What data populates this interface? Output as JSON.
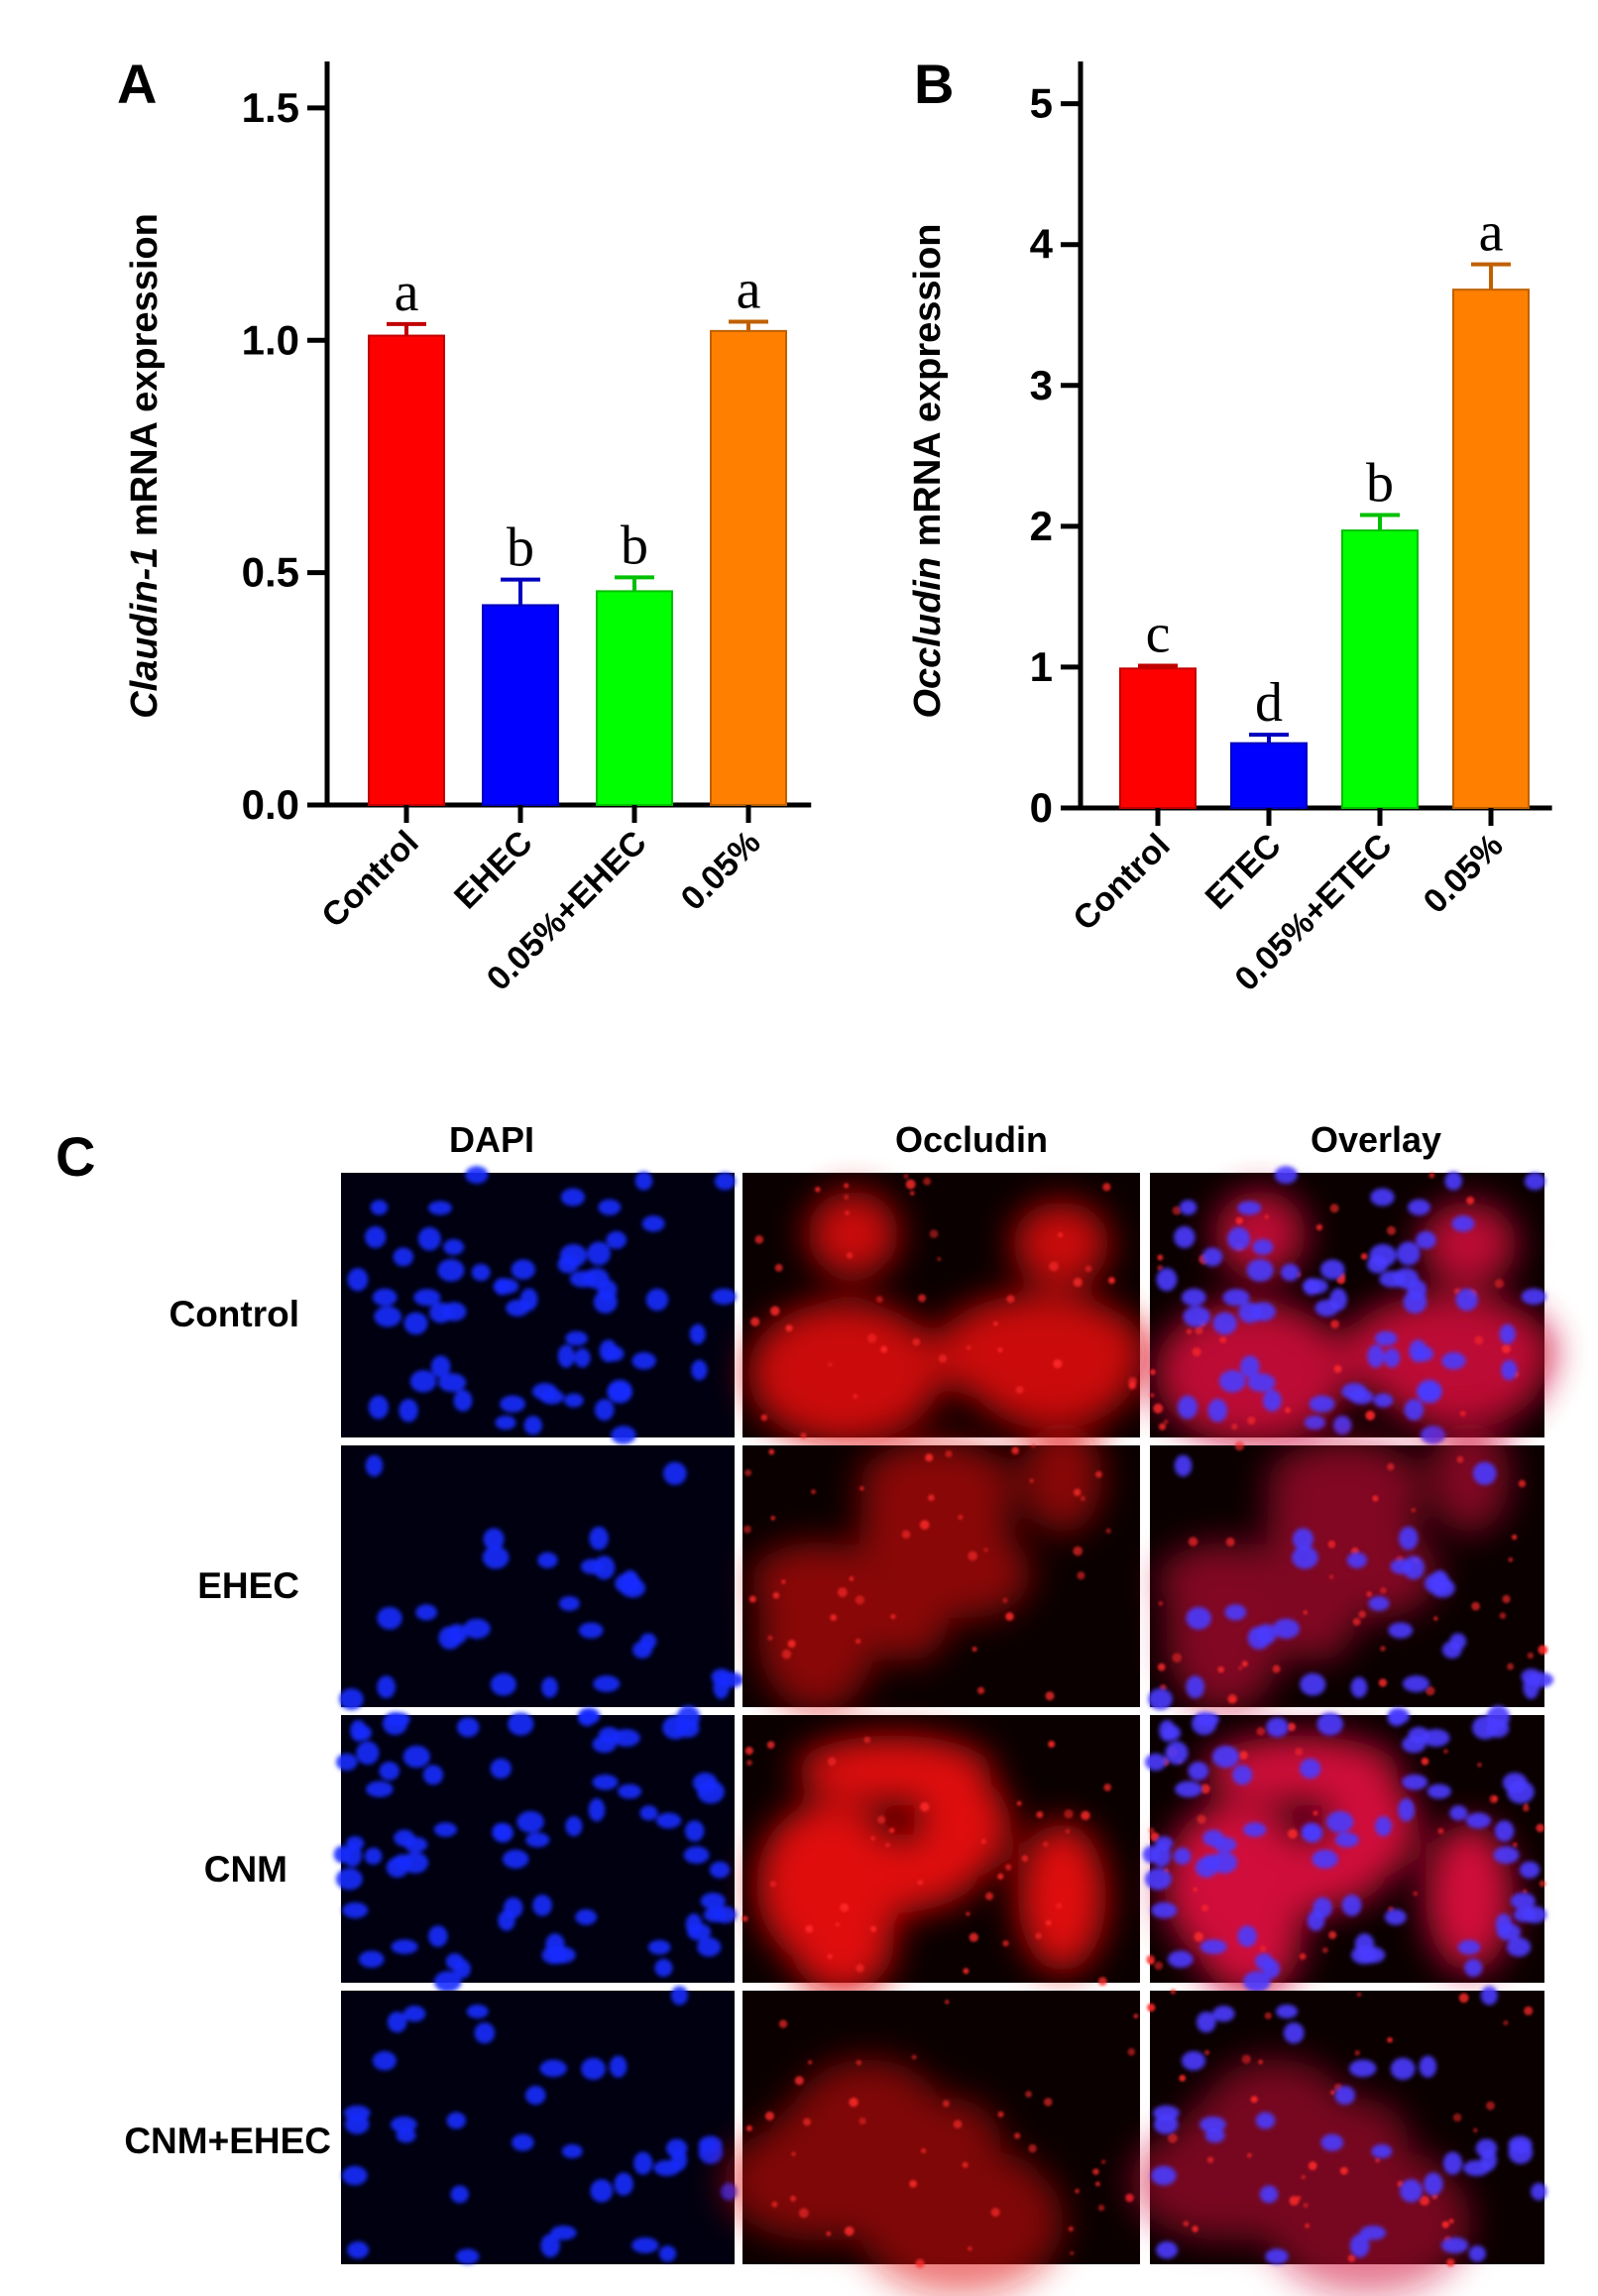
{
  "chart_data": [
    {
      "panel": "A",
      "type": "bar",
      "categories": [
        "Control",
        "EHEC",
        "0.05%+EHEC",
        "0.05%"
      ],
      "values": [
        1.01,
        0.43,
        0.46,
        1.02
      ],
      "errors": [
        0.025,
        0.055,
        0.03,
        0.02
      ],
      "significance": [
        "a",
        "b",
        "b",
        "a"
      ],
      "colors": [
        "#ff0000",
        "#0000ff",
        "#00ff00",
        "#ff8000"
      ],
      "error_colors": [
        "#c00000",
        "#0000c0",
        "#00c000",
        "#c06000"
      ],
      "ylabel_italic": "Claudin-1",
      "ylabel_rest": " mRNA expression",
      "ylim": [
        0,
        1.6
      ],
      "yticks": [
        "0.0",
        "0.5",
        "1.0",
        "1.5"
      ],
      "ytick_values": [
        0,
        0.5,
        1.0,
        1.5
      ]
    },
    {
      "panel": "B",
      "type": "bar",
      "categories": [
        "Control",
        "ETEC",
        "0.05%+ETEC",
        "0.05%"
      ],
      "values": [
        0.99,
        0.46,
        1.97,
        3.68
      ],
      "errors": [
        0.02,
        0.06,
        0.11,
        0.18
      ],
      "significance": [
        "c",
        "d",
        "b",
        "a"
      ],
      "colors": [
        "#ff0000",
        "#0000ff",
        "#00ff00",
        "#ff8000"
      ],
      "error_colors": [
        "#c00000",
        "#0000c0",
        "#00c000",
        "#c06000"
      ],
      "ylabel_italic": "Occludin",
      "ylabel_rest": " mRNA expression",
      "ylim": [
        0,
        5.3
      ],
      "yticks": [
        "0",
        "1",
        "2",
        "3",
        "4",
        "5"
      ],
      "ytick_values": [
        0,
        1,
        2,
        3,
        4,
        5
      ]
    }
  ],
  "panel_c": {
    "panel": "C",
    "columns": [
      "DAPI",
      "Occludin",
      "Overlay"
    ],
    "rows": [
      "Control",
      "EHEC",
      "CNM",
      "CNM+EHEC"
    ]
  }
}
